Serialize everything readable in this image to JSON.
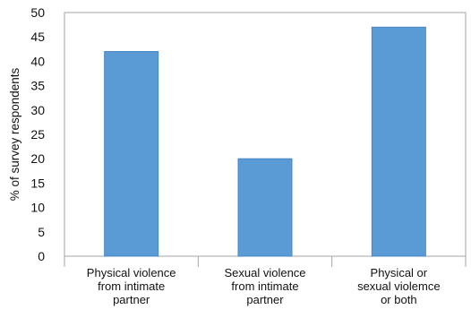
{
  "chart_data": {
    "type": "bar",
    "categories": [
      [
        "Physical violence",
        "from intimate",
        "partner"
      ],
      [
        "Sexual violence",
        "from intimate",
        "partner"
      ],
      [
        "Physical or",
        "sexual violemce",
        "or both"
      ]
    ],
    "values": [
      42,
      20,
      47
    ],
    "ylabel": "% of survey respondents",
    "xlabel": "",
    "ylim": [
      0,
      50
    ],
    "yticks": [
      0,
      5,
      10,
      15,
      20,
      25,
      30,
      35,
      40,
      45,
      50
    ],
    "grid": false,
    "bar_color": "#5b9bd5",
    "axis_color": "#a6a6a6"
  }
}
